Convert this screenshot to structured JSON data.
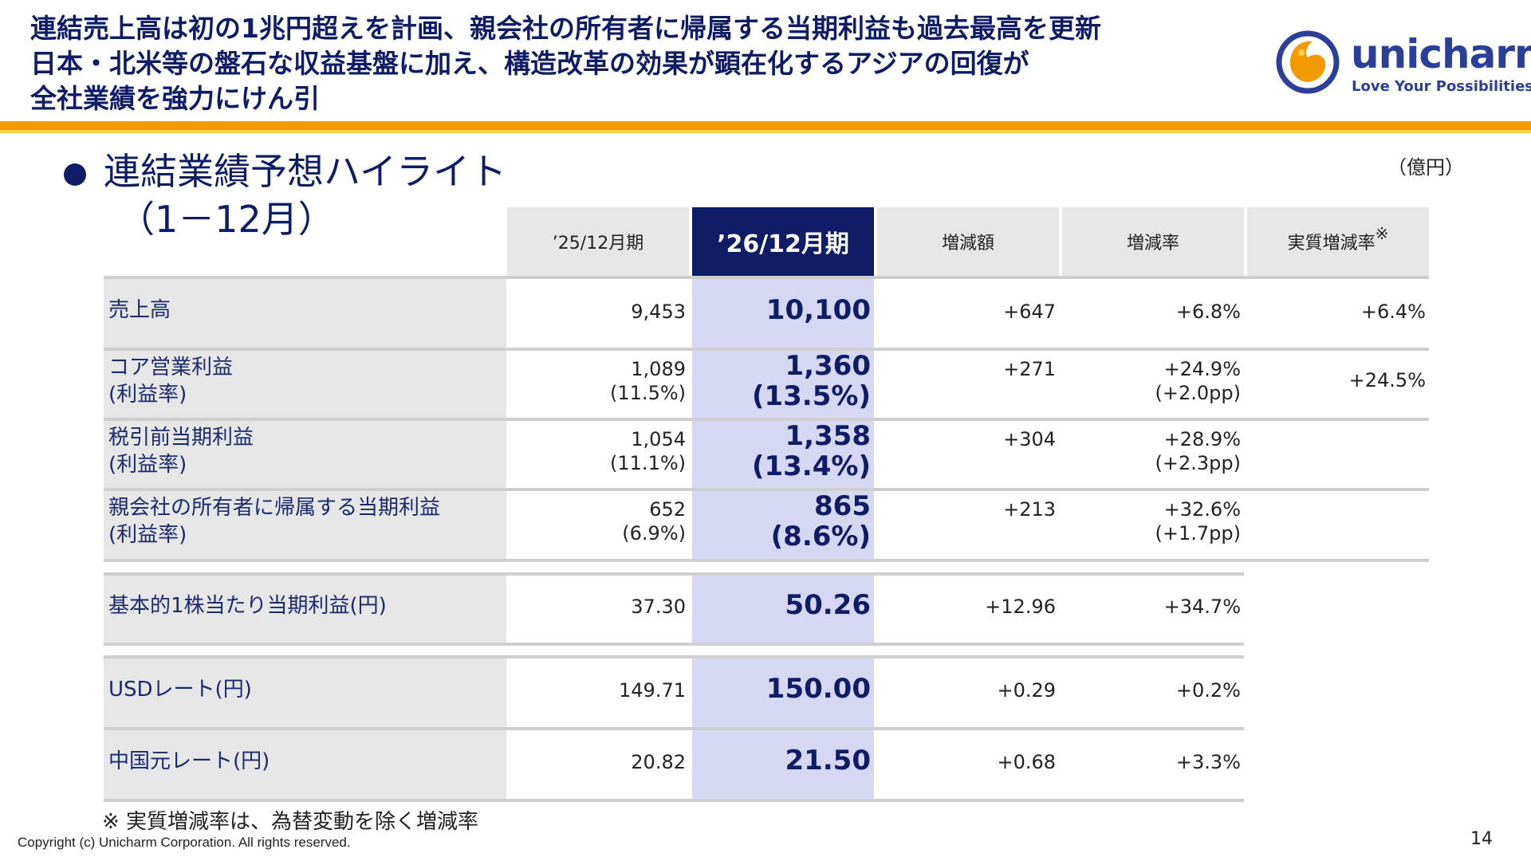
{
  "headline": {
    "line1": "連結売上高は初の1兆円超えを計画、親会社の所有者に帰属する当期利益も過去最高を更新",
    "line2": "日本・北米等の盤石な収益基盤に加え、構造改革の効果が顕在化するアジアの回復が",
    "line3": "全社業績を強力にけん引"
  },
  "logo": {
    "name": "unicharm",
    "tagline": "Love Your Possibilities"
  },
  "section": {
    "title": "連結業績予想ハイライト",
    "period": "（1－12月）"
  },
  "unit": "（億円）",
  "table": {
    "headers": {
      "prev": "’25/12月期",
      "current": "’26/12月期",
      "change": "増減額",
      "rate": "増減率",
      "real_rate": "実質増減率",
      "real_rate_mark": "※"
    },
    "rows": [
      {
        "label1": "売上高",
        "label2": "",
        "prev1": "9,453",
        "prev2": "",
        "cur1": "10,100",
        "cur2": "",
        "chg1": "+647",
        "rate1": "+6.8%",
        "rate2": "",
        "real1": "+6.4%"
      },
      {
        "label1": "コア営業利益",
        "label2": "(利益率)",
        "prev1": "1,089",
        "prev2": "(11.5%)",
        "cur1": "1,360",
        "cur2": "(13.5%)",
        "chg1": "+271",
        "rate1": "+24.9%",
        "rate2": "(+2.0pp)",
        "real1": "+24.5%"
      },
      {
        "label1": "税引前当期利益",
        "label2": "(利益率)",
        "prev1": "1,054",
        "prev2": "(11.1%)",
        "cur1": "1,358",
        "cur2": "(13.4%)",
        "chg1": "+304",
        "rate1": "+28.9%",
        "rate2": "(+2.3pp)",
        "real1": ""
      },
      {
        "label1": "親会社の所有者に帰属する当期利益",
        "label2": "(利益率)",
        "prev1": "652",
        "prev2": "(6.9%)",
        "cur1": "865",
        "cur2": "(8.6%)",
        "chg1": "+213",
        "rate1": "+32.6%",
        "rate2": "(+1.7pp)",
        "real1": ""
      },
      {
        "label1": "基本的1株当たり当期利益(円)",
        "label2": "",
        "prev1": "37.30",
        "prev2": "",
        "cur1": "50.26",
        "cur2": "",
        "chg1": "+12.96",
        "rate1": "+34.7%",
        "rate2": "",
        "real1": ""
      },
      {
        "label1": "USDレート(円)",
        "label2": "",
        "prev1": "149.71",
        "prev2": "",
        "cur1": "150.00",
        "cur2": "",
        "chg1": "+0.29",
        "rate1": "+0.2%",
        "rate2": "",
        "real1": ""
      },
      {
        "label1": "中国元レート(円)",
        "label2": "",
        "prev1": "20.82",
        "prev2": "",
        "cur1": "21.50",
        "cur2": "",
        "chg1": "+0.68",
        "rate1": "+3.3%",
        "rate2": "",
        "real1": ""
      }
    ]
  },
  "footnote": "※ 実質増減率は、為替変動を除く増減率",
  "copyright": "Copyright (c) Unicharm Corporation. All rights reserved.",
  "page_number": "14",
  "colors": {
    "navy": "#0f1c66",
    "orange": "#f29a00",
    "highlight": "#d6d7f3",
    "label_bg": "#e6e6e6"
  }
}
